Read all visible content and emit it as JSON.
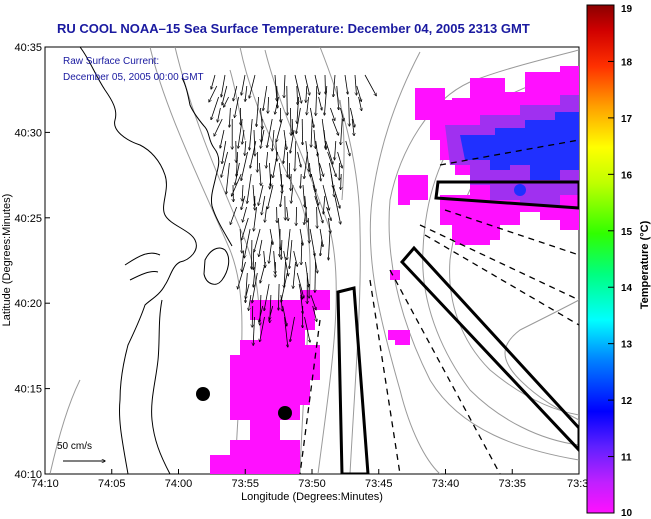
{
  "title": "RU COOL   NOAA–15  Sea Surface Temperature:  December 04, 2005 2313 GMT",
  "overlay": {
    "line1": "Raw Surface Current:",
    "line2": "December 05, 2005 00:00 GMT"
  },
  "axes": {
    "xlabel": "Longitude (Degrees:Minutes)",
    "ylabel": "Latitude (Degrees:Minutes)",
    "xticks": [
      "74:10",
      "74:05",
      "74:00",
      "73:55",
      "73:50",
      "73:45",
      "73:40",
      "73:35",
      "73:3"
    ],
    "yticks": [
      "40:35",
      "40:30",
      "40:25",
      "40:20",
      "40:15",
      "40:10"
    ]
  },
  "scale_label": "50 cm/s",
  "colorbar": {
    "label": "Temperature (°C)",
    "min": 10,
    "max": 19,
    "ticks": [
      "19",
      "18",
      "17",
      "16",
      "15",
      "14",
      "13",
      "12",
      "11",
      "10"
    ],
    "colors": [
      "#ff00ff",
      "#7f00ff",
      "#0000ff",
      "#0080ff",
      "#00ffff",
      "#00ff80",
      "#00ff00",
      "#80ff00",
      "#ffff00",
      "#ffbf00",
      "#ff8000",
      "#ff0000",
      "#8b0000"
    ]
  },
  "colors": {
    "title": "#1a1aa0",
    "overlay": "#1a1aa0",
    "sst_low": "#ff10ff",
    "sst_mid": "#a030f0",
    "sst_cold": "#2030ff"
  }
}
